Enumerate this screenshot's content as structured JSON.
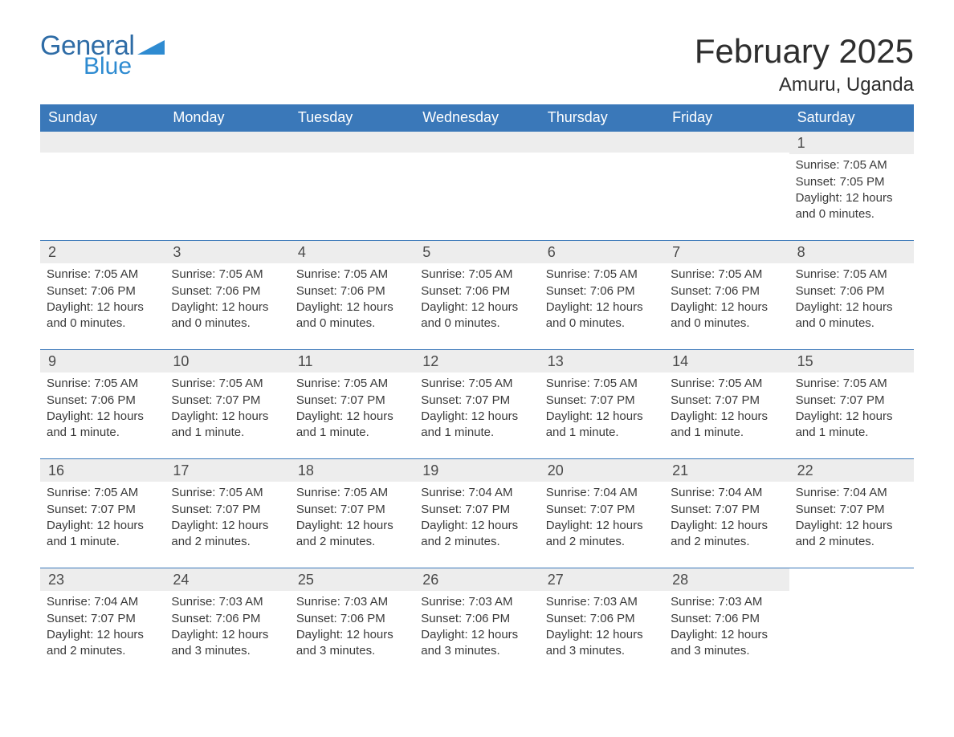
{
  "logo": {
    "text1": "General",
    "text2": "Blue"
  },
  "title": "February 2025",
  "location": "Amuru, Uganda",
  "colors": {
    "header_bg": "#3a78b9",
    "row_sep": "#3a78b9",
    "daynum_bg": "#ededed",
    "text": "#3a3a3a",
    "logo1": "#2e6ca6",
    "logo2": "#2e8bd1"
  },
  "dow": [
    "Sunday",
    "Monday",
    "Tuesday",
    "Wednesday",
    "Thursday",
    "Friday",
    "Saturday"
  ],
  "label_sunrise": "Sunrise: ",
  "label_sunset": "Sunset: ",
  "label_daylight_prefix": "Daylight: ",
  "weeks": [
    [
      {
        "blank": true
      },
      {
        "blank": true
      },
      {
        "blank": true
      },
      {
        "blank": true
      },
      {
        "blank": true
      },
      {
        "blank": true
      },
      {
        "n": "1",
        "sunrise": "7:05 AM",
        "sunset": "7:05 PM",
        "daylight": "12 hours and 0 minutes."
      }
    ],
    [
      {
        "n": "2",
        "sunrise": "7:05 AM",
        "sunset": "7:06 PM",
        "daylight": "12 hours and 0 minutes."
      },
      {
        "n": "3",
        "sunrise": "7:05 AM",
        "sunset": "7:06 PM",
        "daylight": "12 hours and 0 minutes."
      },
      {
        "n": "4",
        "sunrise": "7:05 AM",
        "sunset": "7:06 PM",
        "daylight": "12 hours and 0 minutes."
      },
      {
        "n": "5",
        "sunrise": "7:05 AM",
        "sunset": "7:06 PM",
        "daylight": "12 hours and 0 minutes."
      },
      {
        "n": "6",
        "sunrise": "7:05 AM",
        "sunset": "7:06 PM",
        "daylight": "12 hours and 0 minutes."
      },
      {
        "n": "7",
        "sunrise": "7:05 AM",
        "sunset": "7:06 PM",
        "daylight": "12 hours and 0 minutes."
      },
      {
        "n": "8",
        "sunrise": "7:05 AM",
        "sunset": "7:06 PM",
        "daylight": "12 hours and 0 minutes."
      }
    ],
    [
      {
        "n": "9",
        "sunrise": "7:05 AM",
        "sunset": "7:06 PM",
        "daylight": "12 hours and 1 minute."
      },
      {
        "n": "10",
        "sunrise": "7:05 AM",
        "sunset": "7:07 PM",
        "daylight": "12 hours and 1 minute."
      },
      {
        "n": "11",
        "sunrise": "7:05 AM",
        "sunset": "7:07 PM",
        "daylight": "12 hours and 1 minute."
      },
      {
        "n": "12",
        "sunrise": "7:05 AM",
        "sunset": "7:07 PM",
        "daylight": "12 hours and 1 minute."
      },
      {
        "n": "13",
        "sunrise": "7:05 AM",
        "sunset": "7:07 PM",
        "daylight": "12 hours and 1 minute."
      },
      {
        "n": "14",
        "sunrise": "7:05 AM",
        "sunset": "7:07 PM",
        "daylight": "12 hours and 1 minute."
      },
      {
        "n": "15",
        "sunrise": "7:05 AM",
        "sunset": "7:07 PM",
        "daylight": "12 hours and 1 minute."
      }
    ],
    [
      {
        "n": "16",
        "sunrise": "7:05 AM",
        "sunset": "7:07 PM",
        "daylight": "12 hours and 1 minute."
      },
      {
        "n": "17",
        "sunrise": "7:05 AM",
        "sunset": "7:07 PM",
        "daylight": "12 hours and 2 minutes."
      },
      {
        "n": "18",
        "sunrise": "7:05 AM",
        "sunset": "7:07 PM",
        "daylight": "12 hours and 2 minutes."
      },
      {
        "n": "19",
        "sunrise": "7:04 AM",
        "sunset": "7:07 PM",
        "daylight": "12 hours and 2 minutes."
      },
      {
        "n": "20",
        "sunrise": "7:04 AM",
        "sunset": "7:07 PM",
        "daylight": "12 hours and 2 minutes."
      },
      {
        "n": "21",
        "sunrise": "7:04 AM",
        "sunset": "7:07 PM",
        "daylight": "12 hours and 2 minutes."
      },
      {
        "n": "22",
        "sunrise": "7:04 AM",
        "sunset": "7:07 PM",
        "daylight": "12 hours and 2 minutes."
      }
    ],
    [
      {
        "n": "23",
        "sunrise": "7:04 AM",
        "sunset": "7:07 PM",
        "daylight": "12 hours and 2 minutes."
      },
      {
        "n": "24",
        "sunrise": "7:03 AM",
        "sunset": "7:06 PM",
        "daylight": "12 hours and 3 minutes."
      },
      {
        "n": "25",
        "sunrise": "7:03 AM",
        "sunset": "7:06 PM",
        "daylight": "12 hours and 3 minutes."
      },
      {
        "n": "26",
        "sunrise": "7:03 AM",
        "sunset": "7:06 PM",
        "daylight": "12 hours and 3 minutes."
      },
      {
        "n": "27",
        "sunrise": "7:03 AM",
        "sunset": "7:06 PM",
        "daylight": "12 hours and 3 minutes."
      },
      {
        "n": "28",
        "sunrise": "7:03 AM",
        "sunset": "7:06 PM",
        "daylight": "12 hours and 3 minutes."
      },
      {
        "blank": true,
        "no_bar": true
      }
    ]
  ]
}
